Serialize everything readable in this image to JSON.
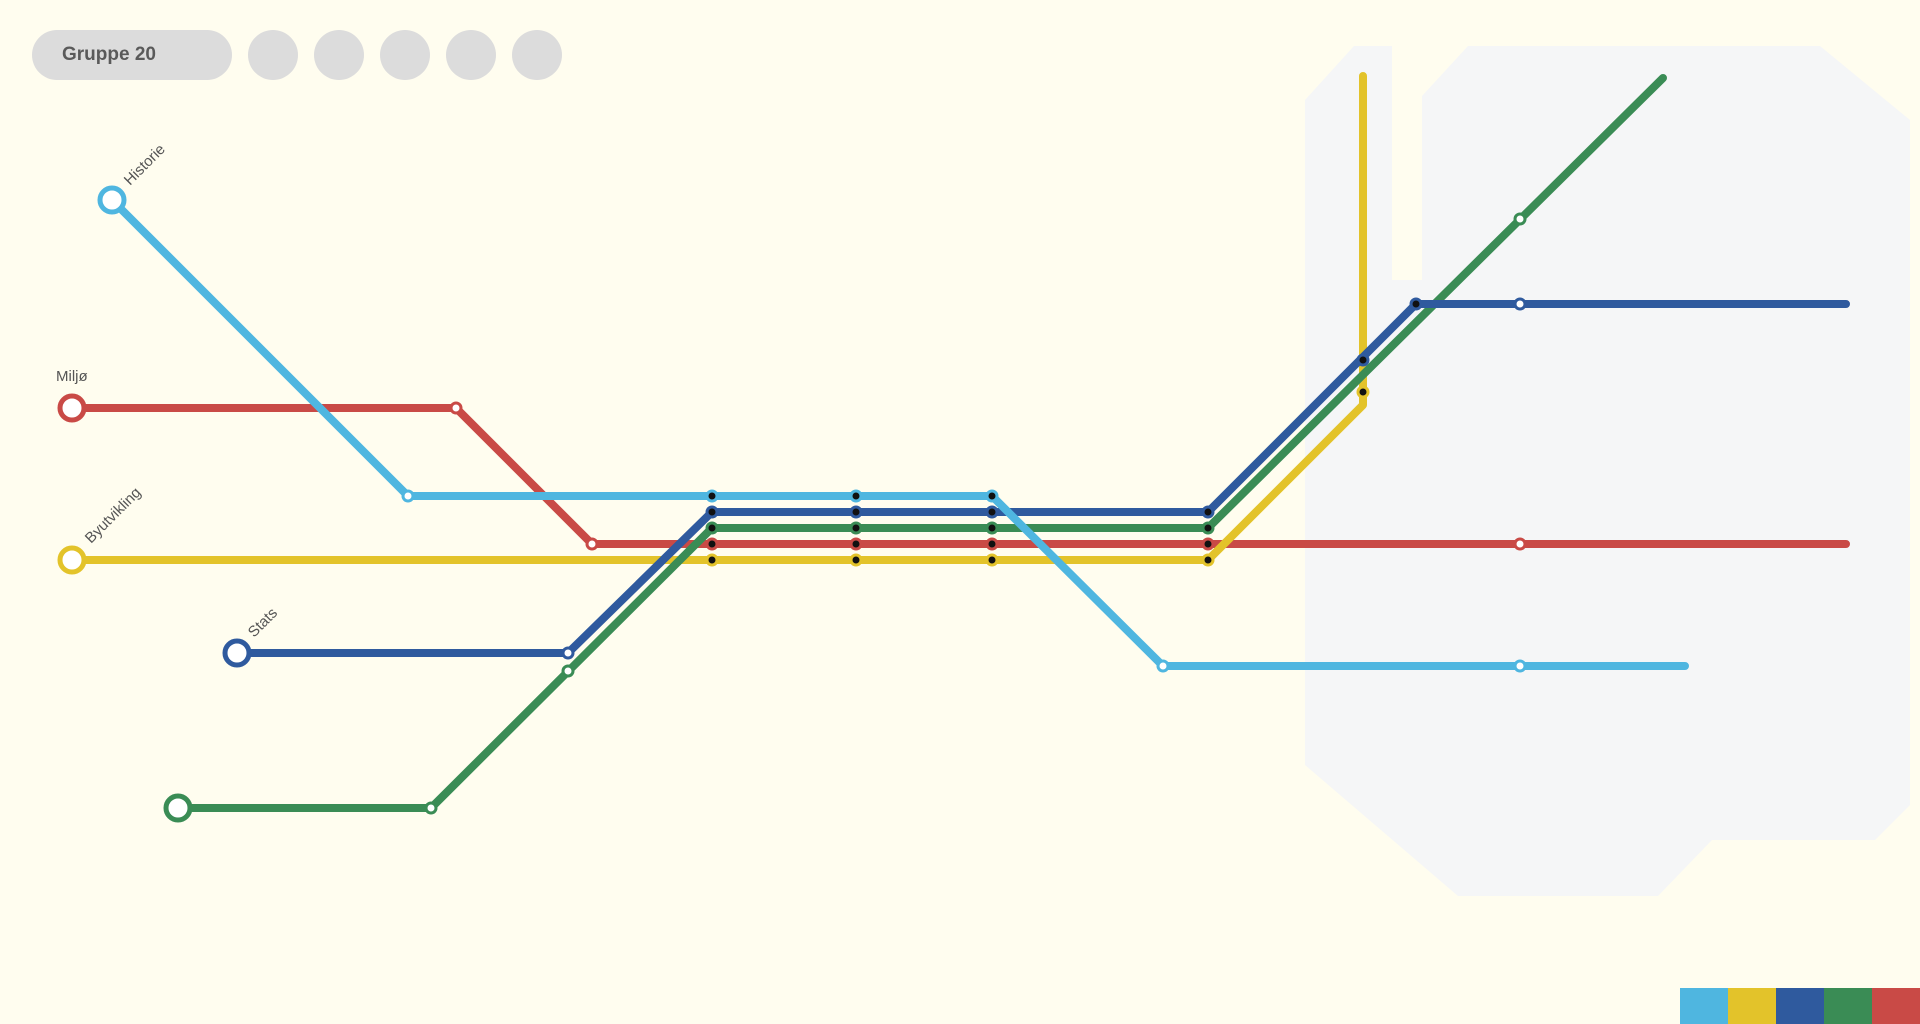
{
  "toolbar": {
    "group_label": "Gruppe 20",
    "buttons": [
      {
        "name": "toolbar-button-1"
      },
      {
        "name": "toolbar-button-2"
      },
      {
        "name": "toolbar-button-3"
      },
      {
        "name": "toolbar-button-4"
      },
      {
        "name": "toolbar-button-5"
      }
    ]
  },
  "lines": [
    {
      "id": "historie",
      "label": "Historie",
      "color": "#4fb6e0"
    },
    {
      "id": "miljo",
      "label": "Miljø",
      "color": "#c94a46"
    },
    {
      "id": "byutvikling",
      "label": "Byutvikling",
      "color": "#e3c32a"
    },
    {
      "id": "stats",
      "label": "Stats",
      "color": "#2f5a9e"
    },
    {
      "id": "green",
      "label": "",
      "color": "#3a8c55"
    }
  ],
  "swatches": [
    {
      "name": "swatch-light-blue",
      "color": "#4fb6e0"
    },
    {
      "name": "swatch-yellow",
      "color": "#e3c32a"
    },
    {
      "name": "swatch-dark-blue",
      "color": "#2f5a9e"
    },
    {
      "name": "swatch-green",
      "color": "#3a8c55"
    },
    {
      "name": "swatch-red",
      "color": "#c94a46"
    }
  ],
  "colors": {
    "background": "#fffdef",
    "region": "#f5f6f7",
    "button": "#dcdcdc"
  }
}
